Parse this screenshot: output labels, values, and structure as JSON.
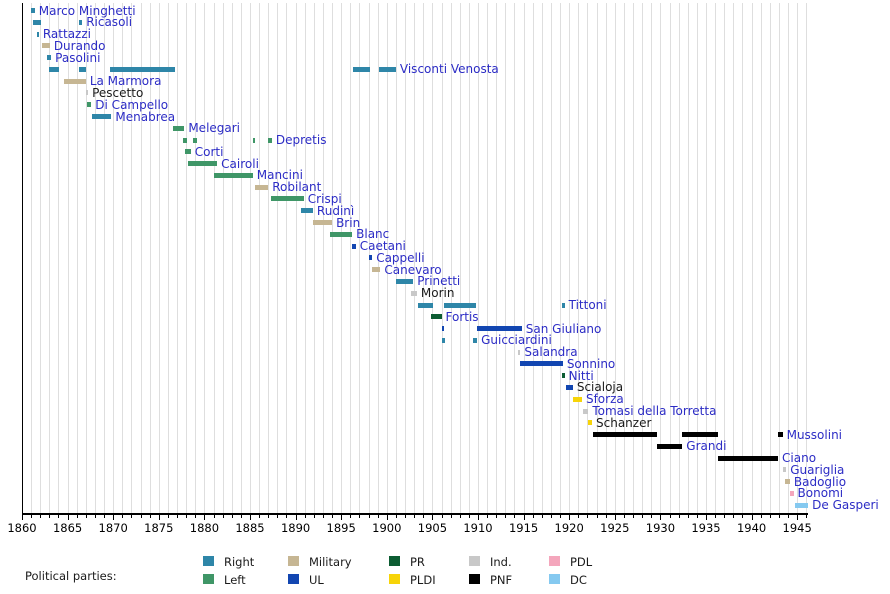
{
  "chart_data": {
    "type": "timeline",
    "title": "",
    "xlabel": "",
    "ylabel": "",
    "x_range": [
      1860,
      1947
    ],
    "axis_major_ticks": [
      1860,
      1865,
      1870,
      1875,
      1880,
      1885,
      1890,
      1895,
      1900,
      1905,
      1910,
      1915,
      1920,
      1925,
      1930,
      1935,
      1940,
      1945
    ],
    "grid": "yearly-vertical",
    "legend_position": "bottom",
    "rows": [
      {
        "name": "Marco Minghetti",
        "party": "Right",
        "link": true,
        "segments": [
          [
            1861.0,
            1861.4
          ]
        ]
      },
      {
        "name": "Ricasoli",
        "party": "Right",
        "link": true,
        "segments": [
          [
            1861.2,
            1862.1
          ],
          [
            1866.3,
            1866.6
          ]
        ]
      },
      {
        "name": "Rattazzi",
        "party": "Right",
        "link": true,
        "segments": [
          [
            1861.6,
            1861.85
          ]
        ]
      },
      {
        "name": "Durando",
        "party": "Military",
        "link": true,
        "segments": [
          [
            1862.2,
            1863.05
          ]
        ]
      },
      {
        "name": "Pasolini",
        "party": "Right",
        "link": true,
        "segments": [
          [
            1862.7,
            1863.2
          ]
        ]
      },
      {
        "name": "Visconti Venosta",
        "party": "Right",
        "link": true,
        "segments": [
          [
            1863.0,
            1864.1
          ],
          [
            1866.3,
            1867.0
          ],
          [
            1869.7,
            1876.8
          ],
          [
            1896.3,
            1898.2
          ],
          [
            1899.1,
            1901.0
          ]
        ]
      },
      {
        "name": "La Marmora",
        "party": "Military",
        "link": true,
        "segments": [
          [
            1864.6,
            1867.0
          ]
        ]
      },
      {
        "name": "Pescetto",
        "party": "Ind.",
        "link": false,
        "segments": [
          [
            1867.0,
            1867.25
          ]
        ]
      },
      {
        "name": "Di Campello",
        "party": "Left",
        "link": true,
        "segments": [
          [
            1867.1,
            1867.6
          ]
        ]
      },
      {
        "name": "Menabrea",
        "party": "Right",
        "link": true,
        "segments": [
          [
            1867.7,
            1869.8
          ]
        ]
      },
      {
        "name": "Melegari",
        "party": "Left",
        "link": true,
        "segments": [
          [
            1876.6,
            1877.8
          ]
        ]
      },
      {
        "name": "Depretis",
        "party": "Left",
        "link": true,
        "segments": [
          [
            1877.6,
            1878.1
          ],
          [
            1878.8,
            1879.2
          ],
          [
            1885.3,
            1885.6
          ],
          [
            1887.0,
            1887.4
          ]
        ]
      },
      {
        "name": "Corti",
        "party": "Left",
        "link": true,
        "segments": [
          [
            1877.9,
            1878.5
          ]
        ]
      },
      {
        "name": "Cairoli",
        "party": "Left",
        "link": true,
        "segments": [
          [
            1878.2,
            1881.4
          ]
        ]
      },
      {
        "name": "Mancini",
        "party": "Left",
        "link": true,
        "segments": [
          [
            1881.0,
            1885.3
          ]
        ]
      },
      {
        "name": "Robilant",
        "party": "Military",
        "link": true,
        "segments": [
          [
            1885.6,
            1887.0
          ]
        ]
      },
      {
        "name": "Crispi",
        "party": "Left",
        "link": true,
        "segments": [
          [
            1887.3,
            1890.9
          ]
        ]
      },
      {
        "name": "Rudinì",
        "party": "Right",
        "link": true,
        "segments": [
          [
            1890.6,
            1891.9
          ]
        ]
      },
      {
        "name": "Brin",
        "party": "Military",
        "link": true,
        "segments": [
          [
            1891.9,
            1894.0
          ]
        ]
      },
      {
        "name": "Blanc",
        "party": "Left",
        "link": true,
        "segments": [
          [
            1893.8,
            1896.2
          ]
        ]
      },
      {
        "name": "Caetani",
        "party": "UL",
        "link": true,
        "segments": [
          [
            1896.2,
            1896.6
          ]
        ]
      },
      {
        "name": "Cappelli",
        "party": "UL",
        "link": true,
        "segments": [
          [
            1898.1,
            1898.4
          ]
        ]
      },
      {
        "name": "Canevaro",
        "party": "Military",
        "link": true,
        "segments": [
          [
            1898.4,
            1899.3
          ]
        ]
      },
      {
        "name": "Prinetti",
        "party": "Right",
        "link": true,
        "segments": [
          [
            1901.0,
            1902.9
          ]
        ]
      },
      {
        "name": "Morin",
        "party": "Ind.",
        "link": false,
        "segments": [
          [
            1902.6,
            1903.3
          ]
        ]
      },
      {
        "name": "Tittoni",
        "party": "Right",
        "link": true,
        "segments": [
          [
            1903.4,
            1905.1
          ],
          [
            1906.3,
            1909.8
          ],
          [
            1919.2,
            1919.5
          ]
        ]
      },
      {
        "name": "Fortis",
        "party": "PR",
        "link": true,
        "segments": [
          [
            1904.9,
            1906.0
          ]
        ]
      },
      {
        "name": "San Giuliano",
        "party": "UL",
        "link": true,
        "segments": [
          [
            1906.0,
            1906.25
          ],
          [
            1909.9,
            1914.8
          ]
        ]
      },
      {
        "name": "Guicciardini",
        "party": "Right",
        "link": true,
        "segments": [
          [
            1906.0,
            1906.4
          ],
          [
            1909.5,
            1909.9
          ]
        ]
      },
      {
        "name": "Salandra",
        "party": "Ind.",
        "link": true,
        "segments": [
          [
            1914.4,
            1914.65
          ]
        ]
      },
      {
        "name": "Sonnino",
        "party": "UL",
        "link": true,
        "segments": [
          [
            1914.6,
            1919.3
          ]
        ]
      },
      {
        "name": "Nitti",
        "party": "PR",
        "link": true,
        "segments": [
          [
            1919.2,
            1919.5
          ]
        ]
      },
      {
        "name": "Scialoja",
        "party": "UL",
        "link": false,
        "segments": [
          [
            1919.7,
            1920.4
          ]
        ]
      },
      {
        "name": "Sforza",
        "party": "PLDI",
        "link": true,
        "segments": [
          [
            1920.4,
            1921.4
          ]
        ]
      },
      {
        "name": "Tomasi della Torretta",
        "party": "Ind.",
        "link": true,
        "segments": [
          [
            1921.5,
            1922.1
          ]
        ]
      },
      {
        "name": "Schanzer",
        "party": "PLDI",
        "link": false,
        "segments": [
          [
            1922.1,
            1922.5
          ]
        ]
      },
      {
        "name": "Mussolini",
        "party": "PNF",
        "link": true,
        "segments": [
          [
            1922.6,
            1929.6
          ],
          [
            1932.4,
            1936.3
          ],
          [
            1942.9,
            1943.4
          ]
        ]
      },
      {
        "name": "Grandi",
        "party": "PNF",
        "link": true,
        "segments": [
          [
            1929.6,
            1932.4
          ]
        ]
      },
      {
        "name": "Ciano",
        "party": "PNF",
        "link": true,
        "segments": [
          [
            1936.3,
            1942.9
          ]
        ]
      },
      {
        "name": "Guariglia",
        "party": "Ind.",
        "link": true,
        "segments": [
          [
            1943.4,
            1943.8
          ]
        ]
      },
      {
        "name": "Badoglio",
        "party": "Military",
        "link": true,
        "segments": [
          [
            1943.7,
            1944.2
          ]
        ]
      },
      {
        "name": "Bonomi",
        "party": "PDL",
        "link": true,
        "segments": [
          [
            1944.2,
            1944.6
          ]
        ]
      },
      {
        "name": "De Gasperi",
        "party": "DC",
        "link": true,
        "segments": [
          [
            1944.8,
            1946.2
          ]
        ]
      }
    ]
  },
  "parties": {
    "Right": "#2e86a8",
    "Left": "#3f9667",
    "Military": "#c6b693",
    "UL": "#1246b1",
    "PR": "#0c5c32",
    "PLDI": "#f7d408",
    "Ind.": "#c8c8c8",
    "PNF": "#000000",
    "PDL": "#f4a6bc",
    "DC": "#85c9f0"
  },
  "legend": {
    "title": "Political parties:",
    "columns": [
      [
        "Right",
        "Left"
      ],
      [
        "Military",
        "UL"
      ],
      [
        "PR",
        "PLDI"
      ],
      [
        "Ind.",
        "PNF"
      ],
      [
        "PDL",
        "DC"
      ]
    ]
  },
  "colors": {
    "link_text": "#2c2cc5",
    "plain_text": "#1a1a1a",
    "gridline": "#dedede",
    "axis": "#000000",
    "background": "#ffffff"
  }
}
